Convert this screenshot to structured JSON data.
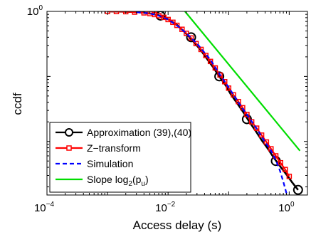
{
  "chart_data": {
    "type": "line",
    "title": "",
    "xlabel": "Access delay (s)",
    "ylabel": "ccdf",
    "xscale": "log",
    "yscale": "log",
    "xlim": [
      0.0001,
      2
    ],
    "ylim": [
      0.0015,
      1
    ],
    "grid": false,
    "legend_position": "bottom-left",
    "x_ticks": [
      {
        "base": "10",
        "exp": "−4",
        "value": 0.0001
      },
      {
        "base": "10",
        "exp": "−2",
        "value": 0.01
      },
      {
        "base": "10",
        "exp": "0",
        "value": 1
      }
    ],
    "y_ticks": [
      {
        "base": "10",
        "exp": "0",
        "value": 1
      }
    ],
    "series": [
      {
        "name": "Approximation (39),(40)",
        "color": "#000000",
        "style": "solid",
        "marker": "circle",
        "x": [
          0.001,
          0.0015,
          0.002,
          0.003,
          0.004,
          0.005,
          0.006,
          0.007,
          0.009,
          0.011,
          0.014,
          0.018,
          0.022,
          0.028,
          0.035,
          0.045,
          0.055,
          0.07,
          0.09,
          0.11,
          0.14,
          0.18,
          0.22,
          0.28,
          0.35,
          0.45,
          0.55,
          0.7,
          0.9,
          1.1,
          1.4
        ],
        "y": [
          1.0,
          0.995,
          0.99,
          0.975,
          0.955,
          0.93,
          0.9,
          0.87,
          0.8,
          0.72,
          0.62,
          0.5,
          0.41,
          0.32,
          0.25,
          0.18,
          0.14,
          0.1,
          0.072,
          0.052,
          0.038,
          0.027,
          0.02,
          0.0145,
          0.0105,
          0.0076,
          0.0057,
          0.0042,
          0.0031,
          0.0024,
          0.0018
        ],
        "marker_x": [
          0.0075,
          0.024,
          0.07,
          0.2,
          0.6,
          1.4
        ],
        "marker_y": [
          0.86,
          0.4,
          0.1,
          0.022,
          0.005,
          0.0018
        ]
      },
      {
        "name": "Z−transform",
        "color": "#ff0000",
        "style": "solid",
        "marker": "square",
        "x": [
          0.001,
          0.0014,
          0.002,
          0.0028,
          0.004,
          0.005,
          0.006,
          0.007,
          0.0085,
          0.01,
          0.012,
          0.014,
          0.017,
          0.02,
          0.024,
          0.029,
          0.035,
          0.042,
          0.05,
          0.06,
          0.072,
          0.086,
          0.1,
          0.12,
          0.145,
          0.17,
          0.2,
          0.24,
          0.29,
          0.35,
          0.42,
          0.5,
          0.6,
          0.72,
          0.86,
          1.0
        ],
        "y": [
          1.0,
          0.995,
          0.99,
          0.975,
          0.95,
          0.925,
          0.895,
          0.86,
          0.81,
          0.75,
          0.68,
          0.61,
          0.53,
          0.46,
          0.39,
          0.32,
          0.26,
          0.21,
          0.17,
          0.135,
          0.105,
          0.083,
          0.066,
          0.052,
          0.041,
          0.033,
          0.026,
          0.02,
          0.016,
          0.0125,
          0.0098,
          0.0077,
          0.006,
          0.0047,
          0.0037,
          0.0029
        ]
      },
      {
        "name": "Simulation",
        "color": "#0000ff",
        "style": "dashed",
        "marker": "none",
        "x": [
          0.003,
          0.005,
          0.007,
          0.01,
          0.015,
          0.02,
          0.03,
          0.05,
          0.07,
          0.1,
          0.15,
          0.2,
          0.3,
          0.4,
          0.5,
          0.6,
          0.7,
          0.8,
          0.9,
          1.0
        ],
        "y": [
          0.975,
          0.93,
          0.86,
          0.75,
          0.58,
          0.46,
          0.32,
          0.18,
          0.11,
          0.068,
          0.038,
          0.026,
          0.015,
          0.0098,
          0.0072,
          0.0052,
          0.0036,
          0.0024,
          0.0016,
          0.0011
        ]
      },
      {
        "name": "Slope log",
        "name_sub": "2",
        "name_suffix": "(p",
        "name_sub2": "u",
        "name_end": ")",
        "color": "#00dd00",
        "style": "solid",
        "marker": "none",
        "x": [
          0.019,
          1.5
        ],
        "y": [
          1.0,
          0.0072
        ]
      }
    ]
  }
}
